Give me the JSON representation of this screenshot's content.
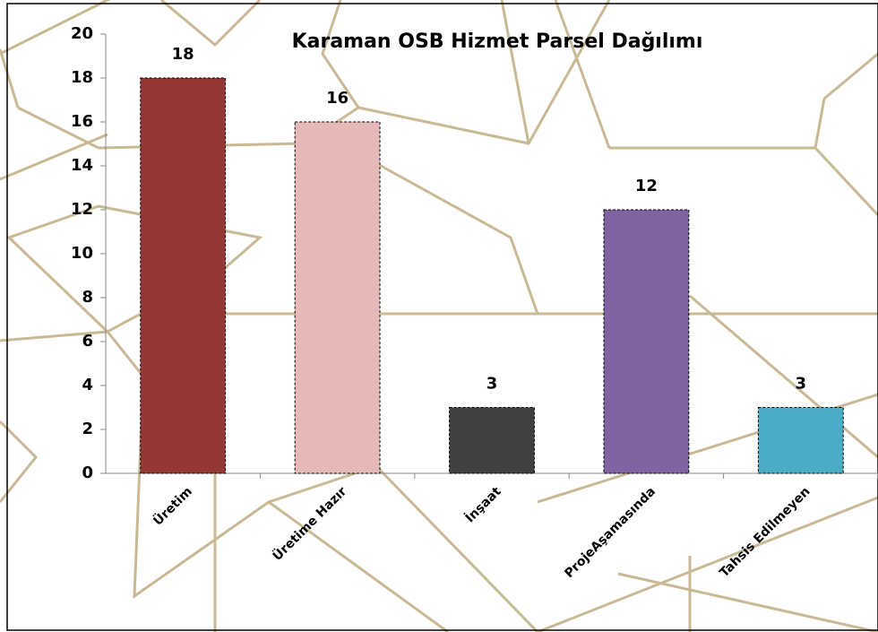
{
  "chart_data": {
    "type": "bar",
    "title": "Karaman OSB Hizmet Parsel Dağılımı",
    "categories": [
      "Üretim",
      "Üretime Hazır",
      "İnşaat",
      "ProjeAşamasında",
      "Tahsis Edilmeyen"
    ],
    "values": [
      18,
      16,
      3,
      12,
      3
    ],
    "colors": [
      "#953735",
      "#e6b9b8",
      "#404040",
      "#8064a2",
      "#4bacc6"
    ],
    "ylim": [
      0,
      20
    ],
    "yticks": [
      0,
      2,
      4,
      6,
      8,
      10,
      12,
      14,
      16,
      18,
      20
    ],
    "grid": false
  }
}
